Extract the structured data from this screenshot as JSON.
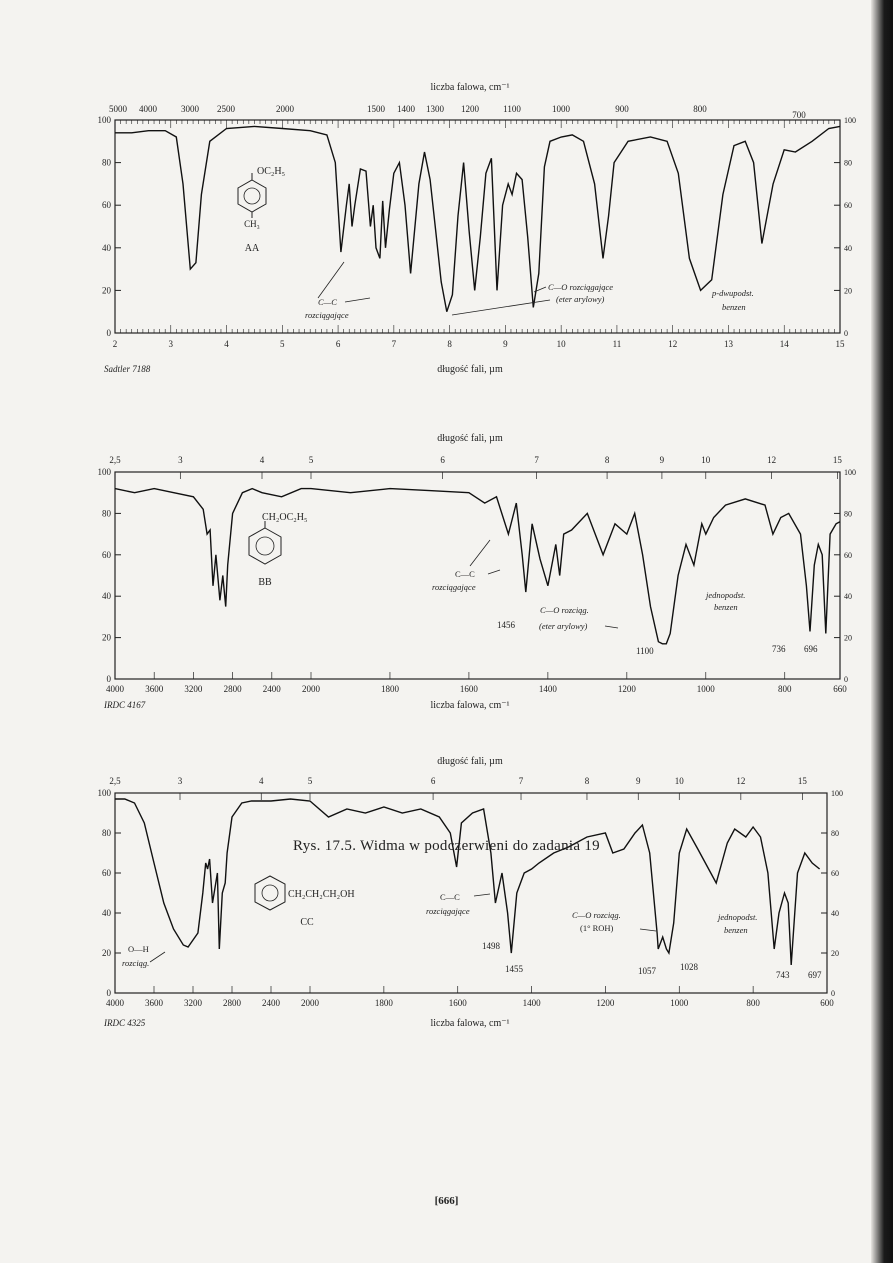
{
  "caption": "Rys. 17.5. Widma w podczerwieni do zadania 19",
  "page_number": "[666]",
  "chart_data": [
    {
      "type": "line",
      "id": "AA",
      "top_axis_title": "liczba falowa, cm⁻¹",
      "top_ticks": [
        "5000",
        "4000",
        "3000",
        "2500",
        "2000",
        "1500",
        "1400",
        "1300",
        "1200",
        "1100",
        "1000",
        "900",
        "800",
        "700"
      ],
      "bottom_axis_title": "długość fali, µm",
      "bottom_ticks": [
        "2",
        "3",
        "4",
        "5",
        "6",
        "7",
        "8",
        "9",
        "10",
        "11",
        "12",
        "13",
        "14",
        "15"
      ],
      "xlim_um": [
        2,
        15
      ],
      "ylim": [
        0,
        100
      ],
      "y_ticks": [
        "0",
        "20",
        "40",
        "60",
        "80",
        "100"
      ],
      "source": "Sadtler 7188",
      "compound_formula_top": "OC₂H₅",
      "compound_formula_bottom": "CH₃",
      "compound_label": "AA",
      "annotations": {
        "cc_stretch_1": "C—C",
        "cc_stretch_2": "rozciągające",
        "co_stretch_1": "C—O rozciągające",
        "co_stretch_2": "(eter arylowy)",
        "benzene_1": "p-dwupodst.",
        "benzene_2": "benzen"
      },
      "series": [
        {
          "x_um": [
            2.0,
            2.3,
            2.6,
            2.9,
            3.1,
            3.22,
            3.35,
            3.45,
            3.55,
            3.7,
            4.0,
            4.5,
            5.0,
            5.5,
            5.8,
            5.95,
            6.05,
            6.15,
            6.2,
            6.25,
            6.3,
            6.4,
            6.5,
            6.58,
            6.63,
            6.68,
            6.75,
            6.8,
            6.85,
            6.92,
            7.0,
            7.1,
            7.2,
            7.3,
            7.45,
            7.55,
            7.65,
            7.75,
            7.85,
            7.95,
            8.05,
            8.15,
            8.25,
            8.35,
            8.45,
            8.55,
            8.65,
            8.75,
            8.85,
            8.95,
            9.05,
            9.12,
            9.2,
            9.3,
            9.4,
            9.5,
            9.6,
            9.7,
            9.8,
            10.0,
            10.2,
            10.4,
            10.6,
            10.75,
            10.85,
            10.95,
            11.2,
            11.6,
            11.9,
            12.1,
            12.3,
            12.5,
            12.7,
            12.9,
            13.1,
            13.3,
            13.45,
            13.6,
            13.8,
            14.0,
            14.2,
            14.5,
            14.8,
            15.0
          ],
          "y": [
            94,
            94,
            95,
            95,
            92,
            70,
            30,
            33,
            65,
            90,
            96,
            97,
            96,
            95,
            93,
            80,
            38,
            60,
            70,
            50,
            60,
            77,
            76,
            50,
            60,
            40,
            35,
            62,
            40,
            58,
            75,
            80,
            60,
            28,
            70,
            85,
            72,
            48,
            24,
            10,
            18,
            55,
            80,
            48,
            20,
            45,
            75,
            82,
            20,
            60,
            70,
            65,
            75,
            72,
            45,
            12,
            28,
            78,
            90,
            92,
            93,
            90,
            70,
            35,
            55,
            80,
            90,
            92,
            90,
            75,
            35,
            20,
            25,
            65,
            88,
            90,
            80,
            42,
            70,
            86,
            85,
            90,
            96,
            97
          ]
        }
      ]
    },
    {
      "type": "line",
      "id": "BB",
      "top_axis_title": "długość fali, µm",
      "top_ticks": [
        "2,5",
        "3",
        "4",
        "5",
        "6",
        "7",
        "8",
        "9",
        "10",
        "12",
        "15"
      ],
      "bottom_axis_title": "liczba falowa, cm⁻¹",
      "bottom_ticks": [
        "4000",
        "3600",
        "3200",
        "2800",
        "2400",
        "2000",
        "1800",
        "1600",
        "1400",
        "1200",
        "1000",
        "800",
        "660"
      ],
      "xlim_cm": [
        4000,
        660
      ],
      "ylim": [
        0,
        100
      ],
      "y_ticks": [
        "0",
        "20",
        "40",
        "60",
        "80",
        "100"
      ],
      "source": "IRDC 4167",
      "compound_formula": "CH₂OC₂H₅",
      "compound_label": "BB",
      "annotations": {
        "cc_stretch_1": "C—C",
        "cc_stretch_2": "rozciągające",
        "co_stretch_1": "C—O rozciąg.",
        "co_stretch_2": "(eter arylowy)",
        "benzene_1": "jednopodst.",
        "benzene_2": "benzen",
        "peak_1456": "1456",
        "peak_1100": "1100",
        "peak_736": "736",
        "peak_696": "696"
      },
      "series": [
        {
          "x_cm": [
            4000,
            3800,
            3600,
            3400,
            3200,
            3100,
            3060,
            3030,
            3000,
            2970,
            2930,
            2900,
            2870,
            2850,
            2800,
            2700,
            2600,
            2500,
            2300,
            2100,
            2000,
            1900,
            1800,
            1700,
            1600,
            1560,
            1530,
            1500,
            1480,
            1465,
            1456,
            1440,
            1420,
            1400,
            1380,
            1370,
            1360,
            1340,
            1300,
            1260,
            1230,
            1200,
            1180,
            1160,
            1140,
            1120,
            1110,
            1100,
            1090,
            1070,
            1050,
            1030,
            1010,
            1000,
            980,
            950,
            900,
            850,
            830,
            810,
            790,
            760,
            745,
            736,
            725,
            715,
            705,
            696,
            685,
            670,
            660
          ],
          "y": [
            92,
            90,
            92,
            90,
            88,
            82,
            70,
            72,
            45,
            60,
            38,
            50,
            35,
            55,
            80,
            90,
            92,
            90,
            88,
            92,
            92,
            90,
            92,
            91,
            90,
            85,
            88,
            70,
            85,
            60,
            42,
            75,
            58,
            45,
            65,
            50,
            70,
            72,
            80,
            60,
            75,
            70,
            80,
            60,
            35,
            18,
            17,
            17,
            22,
            50,
            65,
            55,
            75,
            70,
            78,
            84,
            87,
            84,
            70,
            78,
            80,
            70,
            45,
            23,
            55,
            65,
            60,
            22,
            70,
            75,
            76
          ]
        }
      ]
    },
    {
      "type": "line",
      "id": "CC",
      "top_axis_title": "długość fali, µm",
      "top_ticks": [
        "2,5",
        "3",
        "4",
        "5",
        "6",
        "7",
        "8",
        "9",
        "10",
        "12",
        "15"
      ],
      "bottom_axis_title": "liczba falowa, cm⁻¹",
      "bottom_ticks": [
        "4000",
        "3600",
        "3200",
        "2800",
        "2400",
        "2000",
        "1800",
        "1600",
        "1400",
        "1200",
        "1000",
        "800",
        "600"
      ],
      "xlim_cm": [
        4000,
        600
      ],
      "ylim": [
        0,
        100
      ],
      "y_ticks": [
        "0",
        "20",
        "40",
        "60",
        "80",
        "100"
      ],
      "source": "IRDC 4325",
      "compound_formula": "CH₂CH₂CH₂OH",
      "compound_label": "CC",
      "annotations": {
        "oh_stretch_1": "O—H",
        "oh_stretch_2": "rozciąg.",
        "cc_stretch_1": "C—C",
        "cc_stretch_2": "rozciągające",
        "co_stretch_1": "C—O rozciąg.",
        "co_stretch_2": "(1° ROH)",
        "benzene_1": "jednopodst.",
        "benzene_2": "benzen",
        "peak_1498": "1498",
        "peak_1455": "1455",
        "peak_1057": "1057",
        "peak_1028": "1028",
        "peak_743": "743",
        "peak_697": "697"
      },
      "series": [
        {
          "x_cm": [
            4000,
            3900,
            3800,
            3700,
            3600,
            3500,
            3400,
            3300,
            3250,
            3150,
            3100,
            3070,
            3050,
            3030,
            3000,
            2950,
            2930,
            2900,
            2870,
            2850,
            2800,
            2700,
            2600,
            2400,
            2200,
            2000,
            1950,
            1900,
            1850,
            1800,
            1750,
            1700,
            1650,
            1620,
            1603,
            1590,
            1560,
            1530,
            1510,
            1498,
            1480,
            1465,
            1455,
            1440,
            1420,
            1400,
            1380,
            1340,
            1300,
            1250,
            1200,
            1180,
            1150,
            1120,
            1100,
            1080,
            1060,
            1057,
            1045,
            1035,
            1028,
            1015,
            1000,
            980,
            950,
            900,
            870,
            850,
            820,
            800,
            780,
            760,
            743,
            730,
            715,
            705,
            697,
            680,
            660,
            640,
            620
          ],
          "y": [
            97,
            97,
            95,
            85,
            65,
            45,
            32,
            24,
            23,
            30,
            50,
            65,
            62,
            67,
            45,
            60,
            22,
            50,
            55,
            70,
            88,
            95,
            96,
            96,
            97,
            96,
            88,
            92,
            90,
            93,
            90,
            92,
            88,
            80,
            63,
            85,
            90,
            92,
            70,
            45,
            60,
            40,
            20,
            50,
            60,
            62,
            65,
            70,
            73,
            78,
            80,
            70,
            72,
            80,
            84,
            70,
            30,
            22,
            28,
            22,
            20,
            35,
            70,
            82,
            72,
            55,
            75,
            82,
            78,
            83,
            78,
            60,
            22,
            40,
            50,
            45,
            14,
            60,
            70,
            65,
            62
          ]
        }
      ]
    }
  ]
}
